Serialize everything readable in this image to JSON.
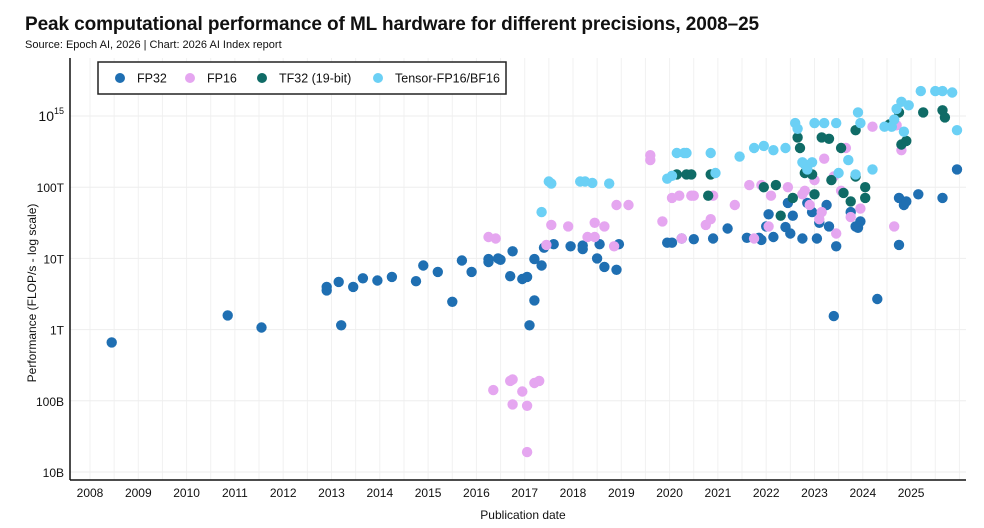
{
  "header": {
    "title": "Peak computational performance of ML hardware for different precisions, 2008–25",
    "subtitle": "Source: Epoch AI, 2026 | Chart: 2026 AI Index report"
  },
  "chart_data": {
    "type": "scatter",
    "title": "Peak computational performance of ML hardware for different precisions, 2008–25",
    "subtitle": "Source: Epoch AI, 2026 | Chart: 2026 AI Index report",
    "xlabel": "Publication date",
    "ylabel": "Performance (FLOP/s - log scale)",
    "y_scale": "log10",
    "xlim": [
      2008,
      2026.2
    ],
    "ylim_log10": [
      9.95,
      15.75
    ],
    "grid": true,
    "legend_position": "top-left",
    "x_ticks": [
      "2008",
      "2009",
      "2010",
      "2011",
      "2012",
      "2013",
      "2014",
      "2015",
      "2016",
      "2017",
      "2018",
      "2019",
      "2020",
      "2021",
      "2022",
      "2023",
      "2024",
      "2025"
    ],
    "y_ticks": [
      {
        "log10": 10,
        "label": "10B"
      },
      {
        "log10": 11,
        "label": "100B"
      },
      {
        "log10": 12,
        "label": "1T"
      },
      {
        "log10": 13,
        "label": "10T"
      },
      {
        "log10": 14,
        "label": "100T"
      },
      {
        "log10": 15,
        "label": "10",
        "sup": "15"
      }
    ],
    "series": [
      {
        "name": "FP32",
        "color": "#1f6fb2",
        "points": [
          [
            2008.45,
            11.82
          ],
          [
            2010.85,
            12.2
          ],
          [
            2011.55,
            12.03
          ],
          [
            2012.9,
            12.6
          ],
          [
            2012.9,
            12.55
          ],
          [
            2013.2,
            12.06
          ],
          [
            2013.15,
            12.67
          ],
          [
            2013.45,
            12.6
          ],
          [
            2013.65,
            12.72
          ],
          [
            2013.95,
            12.69
          ],
          [
            2014.25,
            12.74
          ],
          [
            2014.75,
            12.68
          ],
          [
            2014.9,
            12.9
          ],
          [
            2015.2,
            12.81
          ],
          [
            2015.5,
            12.39
          ],
          [
            2015.7,
            12.97
          ],
          [
            2015.9,
            12.81
          ],
          [
            2016.25,
            12.99
          ],
          [
            2016.25,
            12.95
          ],
          [
            2016.45,
            13.0
          ],
          [
            2016.5,
            12.98
          ],
          [
            2016.7,
            12.75
          ],
          [
            2016.75,
            13.1
          ],
          [
            2016.95,
            12.71
          ],
          [
            2017.1,
            12.06
          ],
          [
            2017.05,
            12.74
          ],
          [
            2017.2,
            12.99
          ],
          [
            2017.2,
            12.41
          ],
          [
            2017.35,
            12.9
          ],
          [
            2017.4,
            13.15
          ],
          [
            2017.6,
            13.2
          ],
          [
            2017.95,
            13.17
          ],
          [
            2018.2,
            13.18
          ],
          [
            2018.2,
            13.13
          ],
          [
            2018.55,
            13.2
          ],
          [
            2018.5,
            13.0
          ],
          [
            2018.65,
            12.88
          ],
          [
            2018.9,
            12.84
          ],
          [
            2018.95,
            13.2
          ],
          [
            2019.95,
            13.22
          ],
          [
            2020.05,
            13.22
          ],
          [
            2020.25,
            13.28
          ],
          [
            2020.5,
            13.27
          ],
          [
            2020.9,
            13.28
          ],
          [
            2021.2,
            13.42
          ],
          [
            2021.6,
            13.29
          ],
          [
            2021.85,
            13.29
          ],
          [
            2021.9,
            13.26
          ],
          [
            2022.0,
            13.45
          ],
          [
            2022.05,
            13.62
          ],
          [
            2022.15,
            13.3
          ],
          [
            2022.4,
            13.44
          ],
          [
            2022.5,
            13.35
          ],
          [
            2022.55,
            13.6
          ],
          [
            2022.75,
            13.28
          ],
          [
            2022.85,
            13.78
          ],
          [
            2022.95,
            13.65
          ],
          [
            2023.05,
            13.28
          ],
          [
            2023.1,
            13.5
          ],
          [
            2023.25,
            13.75
          ],
          [
            2023.3,
            13.45
          ],
          [
            2023.4,
            12.19
          ],
          [
            2023.45,
            13.17
          ],
          [
            2023.75,
            13.65
          ],
          [
            2023.85,
            13.45
          ],
          [
            2023.9,
            13.43
          ],
          [
            2024.3,
            12.43
          ],
          [
            2024.75,
            13.19
          ],
          [
            2024.75,
            13.85
          ],
          [
            2024.85,
            13.75
          ],
          [
            2024.9,
            13.8
          ],
          [
            2025.15,
            13.9
          ],
          [
            2025.65,
            13.85
          ],
          [
            2025.95,
            14.25
          ],
          [
            2022.45,
            13.78
          ],
          [
            2023.95,
            13.52
          ]
        ]
      },
      {
        "name": "FP16",
        "color": "#e5a6f0",
        "points": [
          [
            2016.35,
            11.15
          ],
          [
            2016.7,
            11.28
          ],
          [
            2016.75,
            11.3
          ],
          [
            2016.75,
            10.95
          ],
          [
            2016.95,
            11.13
          ],
          [
            2017.05,
            10.93
          ],
          [
            2017.05,
            10.28
          ],
          [
            2017.2,
            11.25
          ],
          [
            2017.3,
            11.28
          ],
          [
            2016.25,
            13.3
          ],
          [
            2016.4,
            13.28
          ],
          [
            2017.45,
            13.19
          ],
          [
            2017.55,
            13.47
          ],
          [
            2017.9,
            13.45
          ],
          [
            2018.45,
            13.3
          ],
          [
            2018.65,
            13.45
          ],
          [
            2018.45,
            13.5
          ],
          [
            2018.9,
            13.75
          ],
          [
            2019.15,
            13.75
          ],
          [
            2018.85,
            13.17
          ],
          [
            2019.6,
            14.45
          ],
          [
            2019.6,
            14.38
          ],
          [
            2019.85,
            13.52
          ],
          [
            2020.05,
            13.85
          ],
          [
            2020.2,
            13.88
          ],
          [
            2020.45,
            13.88
          ],
          [
            2020.5,
            13.88
          ],
          [
            2020.75,
            13.47
          ],
          [
            2020.85,
            13.55
          ],
          [
            2020.9,
            13.88
          ],
          [
            2021.35,
            13.75
          ],
          [
            2021.65,
            14.03
          ],
          [
            2021.9,
            14.03
          ],
          [
            2022.05,
            13.45
          ],
          [
            2022.1,
            13.88
          ],
          [
            2022.45,
            14.0
          ],
          [
            2022.75,
            13.9
          ],
          [
            2022.9,
            13.75
          ],
          [
            2023.0,
            14.1
          ],
          [
            2023.1,
            13.55
          ],
          [
            2023.2,
            14.4
          ],
          [
            2023.4,
            14.15
          ],
          [
            2023.45,
            13.35
          ],
          [
            2023.55,
            13.95
          ],
          [
            2023.65,
            14.55
          ],
          [
            2023.75,
            13.58
          ],
          [
            2023.95,
            13.7
          ],
          [
            2024.2,
            14.85
          ],
          [
            2024.7,
            14.87
          ],
          [
            2024.65,
            13.45
          ],
          [
            2024.8,
            14.52
          ],
          [
            2022.8,
            13.95
          ],
          [
            2023.15,
            13.65
          ],
          [
            2021.75,
            13.28
          ],
          [
            2020.25,
            13.28
          ],
          [
            2018.3,
            13.3
          ]
        ]
      },
      {
        "name": "TF32 (19-bit)",
        "color": "#0f6b66",
        "points": [
          [
            2020.15,
            14.18
          ],
          [
            2020.35,
            14.18
          ],
          [
            2020.45,
            14.18
          ],
          [
            2020.85,
            14.18
          ],
          [
            2020.8,
            13.88
          ],
          [
            2021.95,
            14.0
          ],
          [
            2022.2,
            14.03
          ],
          [
            2022.55,
            13.85
          ],
          [
            2022.65,
            14.7
          ],
          [
            2022.7,
            14.55
          ],
          [
            2022.95,
            14.18
          ],
          [
            2023.15,
            14.7
          ],
          [
            2023.3,
            14.68
          ],
          [
            2023.35,
            14.1
          ],
          [
            2023.55,
            14.55
          ],
          [
            2023.75,
            13.8
          ],
          [
            2023.85,
            14.15
          ],
          [
            2023.85,
            14.8
          ],
          [
            2024.55,
            14.88
          ],
          [
            2024.75,
            15.05
          ],
          [
            2024.8,
            14.6
          ],
          [
            2024.9,
            14.65
          ],
          [
            2025.25,
            15.05
          ],
          [
            2025.65,
            15.08
          ],
          [
            2025.7,
            14.98
          ],
          [
            2022.8,
            14.2
          ],
          [
            2023.0,
            13.9
          ],
          [
            2023.6,
            13.92
          ],
          [
            2024.05,
            14.0
          ],
          [
            2022.3,
            13.6
          ],
          [
            2024.05,
            13.85
          ]
        ]
      },
      {
        "name": "Tensor-FP16/BF16",
        "color": "#6bd0f5",
        "points": [
          [
            2017.35,
            13.65
          ],
          [
            2017.5,
            14.08
          ],
          [
            2017.55,
            14.05
          ],
          [
            2018.15,
            14.08
          ],
          [
            2018.25,
            14.08
          ],
          [
            2018.4,
            14.06
          ],
          [
            2018.75,
            14.05
          ],
          [
            2019.95,
            14.12
          ],
          [
            2020.05,
            14.16
          ],
          [
            2020.15,
            14.48
          ],
          [
            2020.3,
            14.48
          ],
          [
            2020.35,
            14.48
          ],
          [
            2020.85,
            14.48
          ],
          [
            2020.95,
            14.2
          ],
          [
            2021.45,
            14.43
          ],
          [
            2021.75,
            14.55
          ],
          [
            2021.95,
            14.58
          ],
          [
            2022.15,
            14.52
          ],
          [
            2022.6,
            14.9
          ],
          [
            2022.65,
            14.82
          ],
          [
            2022.75,
            14.35
          ],
          [
            2022.8,
            14.32
          ],
          [
            2022.95,
            14.35
          ],
          [
            2023.0,
            14.9
          ],
          [
            2023.2,
            14.9
          ],
          [
            2023.45,
            14.9
          ],
          [
            2023.5,
            14.2
          ],
          [
            2023.7,
            14.38
          ],
          [
            2023.85,
            14.18
          ],
          [
            2023.9,
            15.05
          ],
          [
            2023.95,
            14.9
          ],
          [
            2024.2,
            14.25
          ],
          [
            2024.6,
            14.85
          ],
          [
            2024.65,
            14.95
          ],
          [
            2024.7,
            15.1
          ],
          [
            2024.8,
            15.2
          ],
          [
            2024.95,
            15.15
          ],
          [
            2025.2,
            15.35
          ],
          [
            2025.5,
            15.35
          ],
          [
            2025.65,
            15.35
          ],
          [
            2025.85,
            15.33
          ],
          [
            2025.95,
            14.8
          ],
          [
            2024.45,
            14.85
          ],
          [
            2024.85,
            14.78
          ],
          [
            2022.4,
            14.55
          ],
          [
            2022.85,
            14.25
          ]
        ]
      }
    ]
  }
}
